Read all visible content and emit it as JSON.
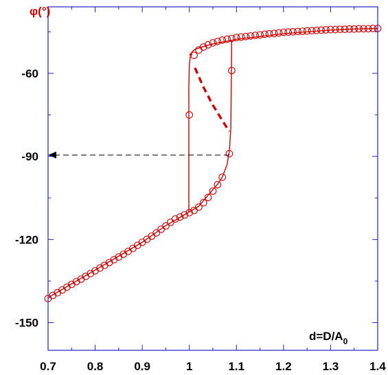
{
  "chart_data": {
    "type": "line",
    "title": "",
    "xlabel": "d=D/A",
    "xlabel_subscript": "0",
    "ylabel": "φ(°)",
    "xlim": [
      0.7,
      1.4
    ],
    "ylim": [
      -160,
      -36
    ],
    "xticks": [
      "0.7",
      "0.8",
      "0.9",
      "1",
      "1.1",
      "1.2",
      "1.3",
      "1.4"
    ],
    "yticks": [
      "-60",
      "-90",
      "-120",
      "-150"
    ],
    "grid": false,
    "colors": {
      "curve": "#cc0000",
      "frame": "#2020c0",
      "arrow": "#000000",
      "ylabel": "#cc0000"
    },
    "series": [
      {
        "style": "solid-line-lower-branch",
        "x": [
          0.7,
          0.75,
          0.8,
          0.85,
          0.9,
          0.95,
          0.98,
          1.0,
          1.02,
          1.04,
          1.06,
          1.07,
          1.08,
          1.085,
          1.088,
          1.09
        ],
        "y": [
          -141,
          -136,
          -131,
          -126,
          -121,
          -115,
          -112,
          -110,
          -108,
          -104,
          -100,
          -97.5,
          -93,
          -88,
          -80,
          -48
        ]
      },
      {
        "style": "solid-line-upper-branch",
        "x": [
          1.0,
          1.01,
          1.03,
          1.05,
          1.07,
          1.09,
          1.1,
          1.15,
          1.2,
          1.25,
          1.3,
          1.35,
          1.4
        ],
        "y": [
          -53.5,
          -51.5,
          -50.3,
          -49.4,
          -48.7,
          -48.1,
          -47.7,
          -46.7,
          -45.7,
          -45.0,
          -44.4,
          -44.0,
          -43.8
        ]
      },
      {
        "style": "solid-line-jump-up",
        "x": [
          0.999,
          0.999,
          1.0,
          1.002,
          1.006
        ],
        "y": [
          -110,
          -65,
          -57,
          -54,
          -53
        ]
      },
      {
        "style": "dashed-thick-unstable-branch",
        "x": [
          1.012,
          1.03,
          1.05,
          1.07,
          1.085
        ],
        "y": [
          -58,
          -65,
          -71.5,
          -77,
          -81
        ]
      },
      {
        "style": "open-circles",
        "x": [
          0.7,
          0.71,
          0.72,
          0.73,
          0.74,
          0.75,
          0.76,
          0.77,
          0.78,
          0.79,
          0.8,
          0.81,
          0.82,
          0.83,
          0.84,
          0.85,
          0.86,
          0.87,
          0.88,
          0.89,
          0.9,
          0.91,
          0.92,
          0.93,
          0.94,
          0.95,
          0.96,
          0.97,
          0.98,
          0.99,
          1.0,
          1.01,
          1.02,
          1.03,
          1.04,
          1.05,
          1.06,
          1.07,
          1.0,
          1.085,
          1.09,
          1.01,
          1.02,
          1.03,
          1.04,
          1.05,
          1.06,
          1.07,
          1.08,
          1.09,
          1.1,
          1.11,
          1.12,
          1.13,
          1.14,
          1.15,
          1.16,
          1.17,
          1.18,
          1.19,
          1.2,
          1.21,
          1.22,
          1.23,
          1.24,
          1.25,
          1.26,
          1.27,
          1.28,
          1.29,
          1.3,
          1.31,
          1.32,
          1.33,
          1.34,
          1.35,
          1.36,
          1.37,
          1.38,
          1.39,
          1.4
        ],
        "y": [
          -141.3,
          -140.2,
          -139.2,
          -138.2,
          -137.2,
          -136.2,
          -135.2,
          -134.3,
          -133.3,
          -132.3,
          -131.3,
          -130.3,
          -129.3,
          -128.3,
          -127.3,
          -126.3,
          -125.3,
          -124.3,
          -123.2,
          -122.1,
          -121.0,
          -119.9,
          -118.8,
          -117.6,
          -116.3,
          -115.1,
          -113.8,
          -112.6,
          -111.9,
          -111.1,
          -110.3,
          -109.5,
          -108.3,
          -106.7,
          -104.8,
          -102.5,
          -100.2,
          -97.5,
          -75,
          -89,
          -59,
          -53.5,
          -51.6,
          -50.5,
          -49.7,
          -49.0,
          -48.5,
          -48.0,
          -47.7,
          -47.4,
          -47.1,
          -46.9,
          -46.7,
          -46.5,
          -46.3,
          -46.1,
          -45.9,
          -45.7,
          -45.6,
          -45.4,
          -45.2,
          -45.1,
          -45.0,
          -44.9,
          -44.8,
          -44.7,
          -44.6,
          -44.5,
          -44.4,
          -44.3,
          -44.2,
          -44.2,
          -44.1,
          -44.1,
          -44.0,
          -44.0,
          -43.9,
          -43.9,
          -43.9,
          -43.8,
          -43.8
        ]
      }
    ],
    "annotations": [
      {
        "type": "dashed-arrow",
        "from": [
          1.085,
          -89.5
        ],
        "to": [
          0.7,
          -89.5
        ]
      }
    ]
  }
}
